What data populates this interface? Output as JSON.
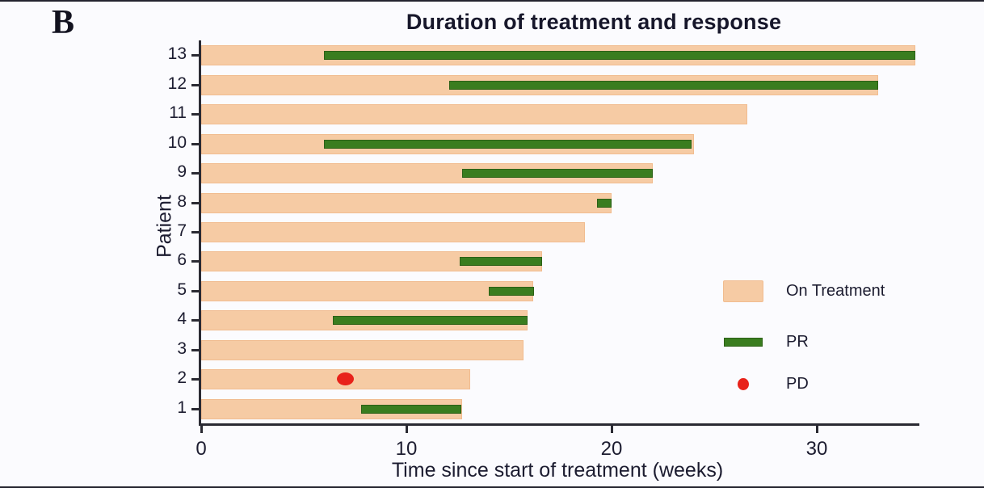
{
  "panel_label": "B",
  "chart_data": {
    "type": "bar",
    "subtype": "swimmer-plot",
    "title": "Duration of treatment and response",
    "xlabel": "Time since start of treatment (weeks)",
    "ylabel": "Patient",
    "xlim": [
      0,
      35
    ],
    "xticks": [
      0,
      10,
      20,
      30
    ],
    "grid": false,
    "legend_position": "right-middle",
    "patients": [
      {
        "id": 13,
        "on_treatment_weeks": 34.8,
        "pr_start": 6.0,
        "pr_end": 34.8,
        "pd_week": null
      },
      {
        "id": 12,
        "on_treatment_weeks": 33.0,
        "pr_start": 12.1,
        "pr_end": 33.0,
        "pd_week": null
      },
      {
        "id": 11,
        "on_treatment_weeks": 26.6,
        "pr_start": null,
        "pr_end": null,
        "pd_week": null
      },
      {
        "id": 10,
        "on_treatment_weeks": 24.0,
        "pr_start": 6.0,
        "pr_end": 23.9,
        "pd_week": null
      },
      {
        "id": 9,
        "on_treatment_weeks": 22.0,
        "pr_start": 12.7,
        "pr_end": 22.0,
        "pd_week": null
      },
      {
        "id": 8,
        "on_treatment_weeks": 20.0,
        "pr_start": 19.3,
        "pr_end": 20.0,
        "pd_week": null
      },
      {
        "id": 7,
        "on_treatment_weeks": 18.7,
        "pr_start": null,
        "pr_end": null,
        "pd_week": null
      },
      {
        "id": 6,
        "on_treatment_weeks": 16.6,
        "pr_start": 12.6,
        "pr_end": 16.6,
        "pd_week": null
      },
      {
        "id": 5,
        "on_treatment_weeks": 16.2,
        "pr_start": 14.0,
        "pr_end": 16.2,
        "pd_week": null
      },
      {
        "id": 4,
        "on_treatment_weeks": 15.9,
        "pr_start": 6.4,
        "pr_end": 15.9,
        "pd_week": null
      },
      {
        "id": 3,
        "on_treatment_weeks": 15.7,
        "pr_start": null,
        "pr_end": null,
        "pd_week": null
      },
      {
        "id": 2,
        "on_treatment_weeks": 13.1,
        "pr_start": null,
        "pr_end": null,
        "pd_week": 7.0
      },
      {
        "id": 1,
        "on_treatment_weeks": 12.7,
        "pr_start": 7.8,
        "pr_end": 12.7,
        "pd_week": null
      }
    ]
  },
  "legend": {
    "items": [
      {
        "label": "On Treatment",
        "marker": "bar",
        "color": "#f6cba4"
      },
      {
        "label": "PR",
        "marker": "line",
        "color": "#3a7d1f"
      },
      {
        "label": "PD",
        "marker": "dot",
        "color": "#e8221a"
      }
    ]
  },
  "colors": {
    "on_treatment": "#f6cba4",
    "pr": "#3a7d1f",
    "pd": "#e8221a",
    "axis": "#2a2a33",
    "text": "#1c1c30",
    "background": "#fbfbfe"
  }
}
